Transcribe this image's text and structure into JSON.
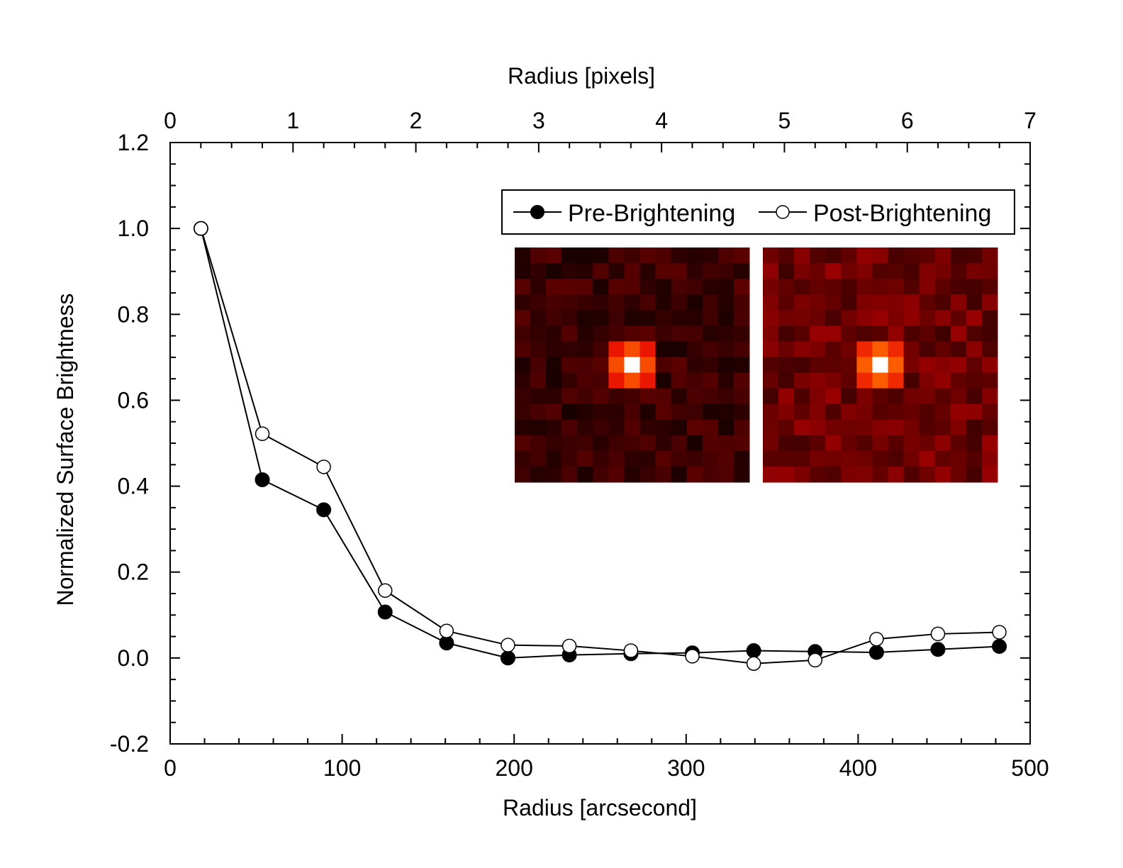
{
  "chart_data": {
    "type": "scatter",
    "title": "",
    "xlabel": "Radius [arcsecond]",
    "x2label": "Radius [pixels]",
    "ylabel": "Normalized Surface Brightness",
    "xlim": [
      0,
      500
    ],
    "x2lim": [
      0,
      7
    ],
    "ylim": [
      -0.2,
      1.2
    ],
    "x_ticks": [
      "0",
      "100",
      "200",
      "300",
      "400",
      "500"
    ],
    "x2_ticks": [
      "0",
      "1",
      "2",
      "3",
      "4",
      "5",
      "6",
      "7"
    ],
    "y_ticks": [
      "-0.2",
      "0.0",
      "0.2",
      "0.4",
      "0.6",
      "0.8",
      "1.0",
      "1.2"
    ],
    "grid": false,
    "legend_position": "top-right",
    "series": [
      {
        "name": "Pre-Brightening",
        "marker": "filled-circle",
        "color": "#000000",
        "x": [
          17.9,
          53.6,
          89.3,
          125.0,
          160.7,
          196.4,
          232.1,
          267.9,
          303.6,
          339.3,
          375.0,
          410.7,
          446.4,
          482.1
        ],
        "y": [
          1.0,
          0.415,
          0.345,
          0.107,
          0.035,
          0.0,
          0.007,
          0.01,
          0.012,
          0.017,
          0.015,
          0.013,
          0.02,
          0.027
        ]
      },
      {
        "name": "Post-Brightening",
        "marker": "open-circle",
        "color": "#000000",
        "x": [
          17.9,
          53.6,
          89.3,
          125.0,
          160.7,
          196.4,
          232.1,
          267.9,
          303.6,
          339.3,
          375.0,
          410.7,
          446.4,
          482.1
        ],
        "y": [
          1.0,
          0.522,
          0.445,
          0.157,
          0.063,
          0.03,
          0.028,
          0.017,
          0.004,
          -0.013,
          -0.005,
          0.044,
          0.056,
          0.06
        ]
      }
    ],
    "insets": [
      {
        "name": "pre-brightening-image",
        "rows": 15,
        "cols": 15
      },
      {
        "name": "post-brightening-image",
        "rows": 15,
        "cols": 15
      }
    ]
  }
}
